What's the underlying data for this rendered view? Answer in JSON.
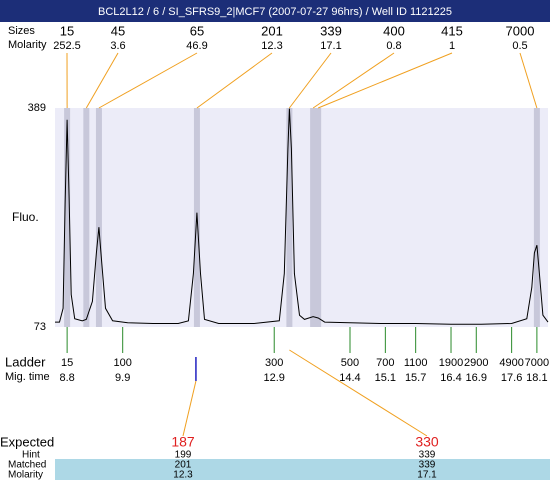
{
  "chart_data": {
    "type": "line",
    "title": "BCL2L12 / 6 / SI_SFRS9_2|MCF7 (2007-07-27 96hrs) / Well ID 1121225",
    "y_label": "Fluo.",
    "ylim": [
      73,
      389
    ],
    "yticks": [
      73,
      389
    ],
    "xlim": [
      8.56,
      18.32
    ],
    "color": "#000000",
    "peaks": {
      "sizes_label": "Sizes",
      "molarity_label": "Molarity",
      "sizes": [
        15,
        45,
        65,
        201,
        339,
        400,
        415,
        7000
      ],
      "molarity": [
        252.5,
        3.6,
        46.9,
        12.3,
        17.1,
        0.8,
        1,
        0.5
      ],
      "times": [
        8.8,
        9.18,
        9.43,
        11.37,
        13.2,
        13.67,
        13.77,
        18.1
      ]
    },
    "ladder": {
      "label": "Ladder",
      "time_label": "Mig. time",
      "sizes": [
        15,
        100,
        300,
        500,
        700,
        1100,
        1900,
        2900,
        4900,
        7000
      ],
      "times": [
        8.8,
        9.9,
        12.9,
        14.4,
        15.1,
        15.7,
        16.4,
        16.9,
        17.6,
        18.1
      ]
    },
    "expected": {
      "label": "Expected",
      "hint_label": "Hint",
      "matched_label": "Matched",
      "molarity_label": "Molarity",
      "values": [
        187,
        330
      ],
      "hint": [
        199,
        339
      ],
      "matched": [
        201,
        339
      ],
      "molarity": [
        12.3,
        17.1
      ],
      "times": [
        11.35,
        13.2
      ]
    },
    "x": [
      8.56,
      8.65,
      8.72,
      8.76,
      8.8,
      8.84,
      8.88,
      8.95,
      9.1,
      9.18,
      9.3,
      9.38,
      9.43,
      9.48,
      9.56,
      9.7,
      10.0,
      10.5,
      11.0,
      11.2,
      11.3,
      11.37,
      11.44,
      11.52,
      11.8,
      12.5,
      13.0,
      13.1,
      13.17,
      13.2,
      13.24,
      13.3,
      13.4,
      13.5,
      13.67,
      13.77,
      13.9,
      14.4,
      15,
      15.7,
      16.4,
      17,
      17.6,
      17.9,
      18.0,
      18.05,
      18.1,
      18.15,
      18.22,
      18.32
    ],
    "values": [
      80,
      80,
      100,
      250,
      372,
      260,
      120,
      85,
      82,
      84,
      110,
      180,
      217,
      170,
      100,
      82,
      79,
      78,
      78,
      82,
      150,
      238,
      150,
      84,
      78,
      78,
      82,
      150,
      330,
      388,
      330,
      150,
      90,
      84,
      88,
      86,
      80,
      79,
      78,
      78,
      77,
      77,
      78,
      85,
      130,
      180,
      191,
      150,
      90,
      80
    ]
  }
}
